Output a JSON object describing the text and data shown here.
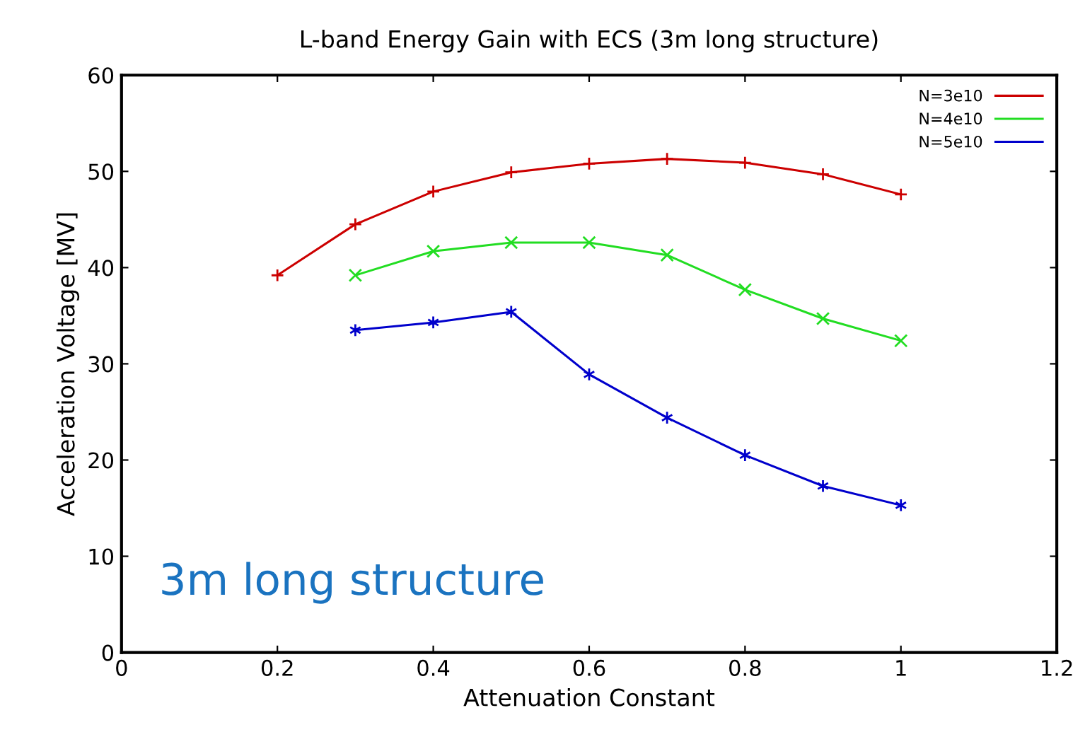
{
  "chart_data": {
    "type": "line",
    "title": "L-band Energy Gain with ECS (3m long structure)",
    "xlabel": "Attenuation Constant",
    "ylabel": "Acceleration Voltage [MV]",
    "xlim": [
      0,
      1.2
    ],
    "xticks": [
      0,
      0.2,
      0.4,
      0.6,
      0.8,
      1,
      1.2
    ],
    "ylim": [
      0,
      60
    ],
    "yticks": [
      0,
      10,
      20,
      30,
      40,
      50,
      60
    ],
    "grid": false,
    "legend": "top right",
    "marker": "cross",
    "annotations": [
      "3m long structure"
    ],
    "series": [
      {
        "name": "N=3e10",
        "color": "#cc0000",
        "x": [
          0.2,
          0.3,
          0.4,
          0.5,
          0.6,
          0.7,
          0.8,
          0.9,
          1.0
        ],
        "values": [
          39.2,
          44.5,
          47.9,
          49.9,
          50.8,
          51.3,
          50.9,
          49.7,
          47.6
        ]
      },
      {
        "name": "N=4e10",
        "color": "#22dd22",
        "x": [
          0.3,
          0.4,
          0.5,
          0.6,
          0.7,
          0.8,
          0.9,
          1.0
        ],
        "values": [
          39.2,
          41.7,
          42.6,
          42.6,
          41.3,
          37.7,
          34.7,
          32.4
        ]
      },
      {
        "name": "N=5e10",
        "color": "#0000cc",
        "x": [
          0.3,
          0.4,
          0.5,
          0.6,
          0.7,
          0.8,
          0.9,
          1.0
        ],
        "values": [
          33.5,
          34.3,
          35.4,
          28.9,
          24.4,
          20.5,
          17.3,
          15.3
        ]
      }
    ]
  }
}
